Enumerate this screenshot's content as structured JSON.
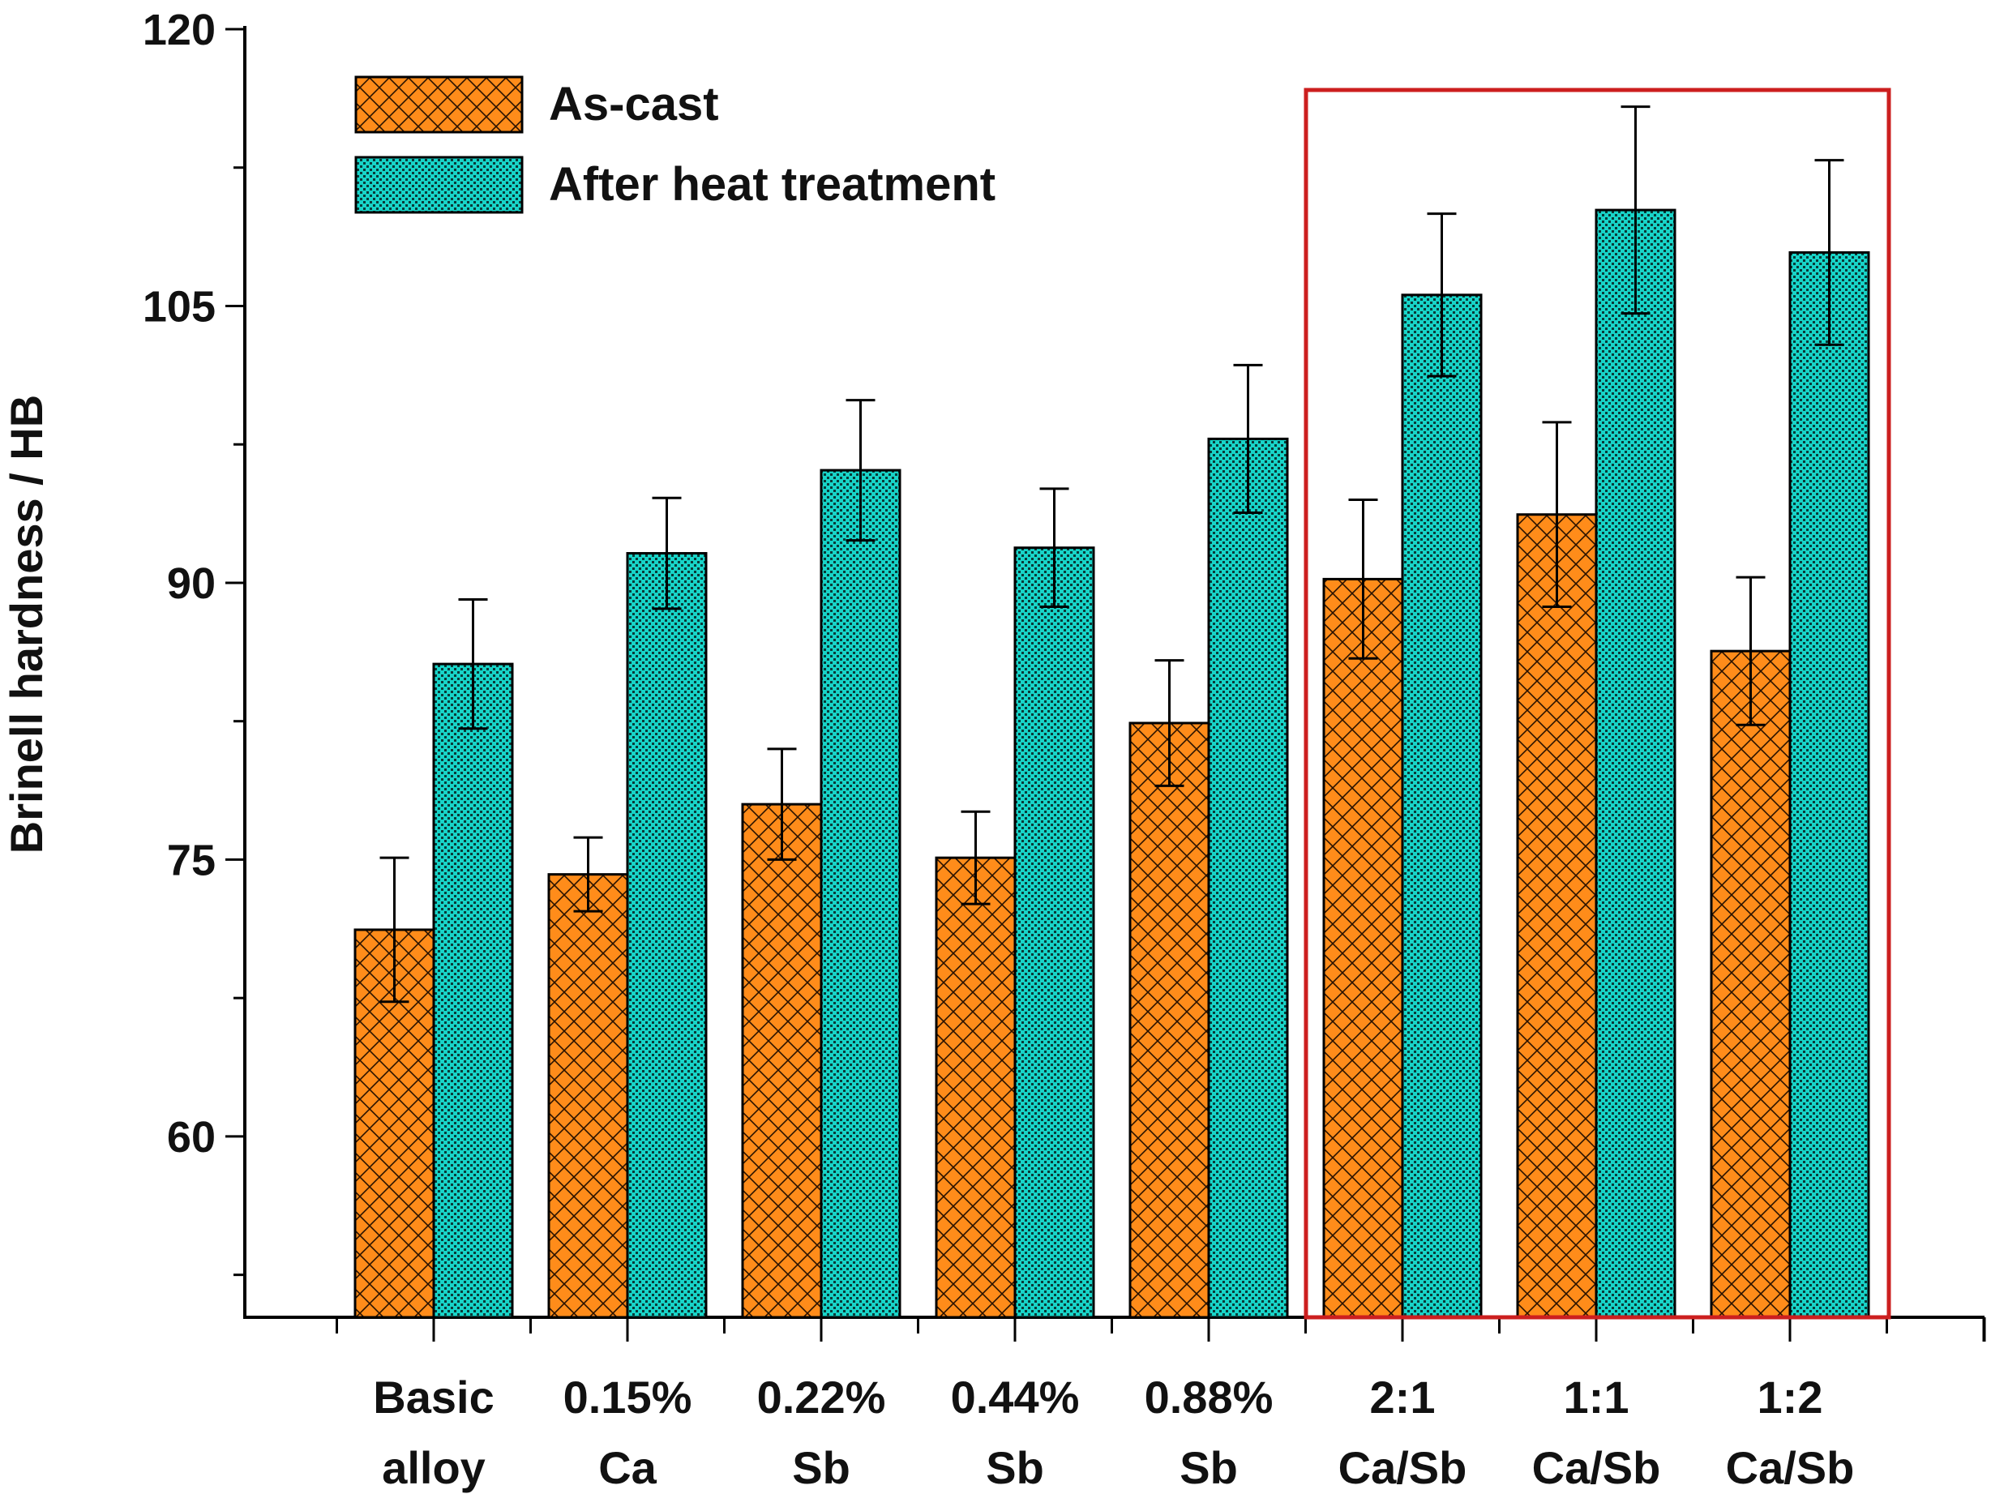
{
  "chart_data": {
    "type": "bar",
    "title": "",
    "xlabel": "",
    "ylabel": "Brinell hardness / HB",
    "ylim": [
      50.2,
      120
    ],
    "yticks": [
      60,
      75,
      90,
      105,
      120
    ],
    "categories": [
      [
        "Basic",
        "alloy"
      ],
      [
        "0.15%",
        "Ca"
      ],
      [
        "0.22%",
        "Sb"
      ],
      [
        "0.44%",
        "Sb"
      ],
      [
        "0.88%",
        "Sb"
      ],
      [
        "2:1",
        "Ca/Sb"
      ],
      [
        "1:1",
        "Ca/Sb"
      ],
      [
        "1:2",
        "Ca/Sb"
      ]
    ],
    "series": [
      {
        "name": "As-cast",
        "color": "#ff8c1a",
        "pattern": "crosshatch",
        "values": [
          71.2,
          74.2,
          78.0,
          75.1,
          82.4,
          90.2,
          93.7,
          86.3
        ],
        "errors": [
          3.9,
          2.0,
          3.0,
          2.5,
          3.4,
          4.3,
          5.0,
          4.0
        ]
      },
      {
        "name": "After heat treatment",
        "color": "#18d4c8",
        "pattern": "checker",
        "values": [
          85.6,
          91.6,
          96.1,
          91.9,
          97.8,
          105.6,
          110.2,
          107.9
        ],
        "errors": [
          3.5,
          3.0,
          3.8,
          3.2,
          4.0,
          4.4,
          5.6,
          5.0
        ]
      }
    ],
    "legend_position": "top-left",
    "highlight_box": {
      "categories": [
        "2:1",
        "1:1",
        "1:2"
      ],
      "color": "#cc1f1f"
    }
  }
}
